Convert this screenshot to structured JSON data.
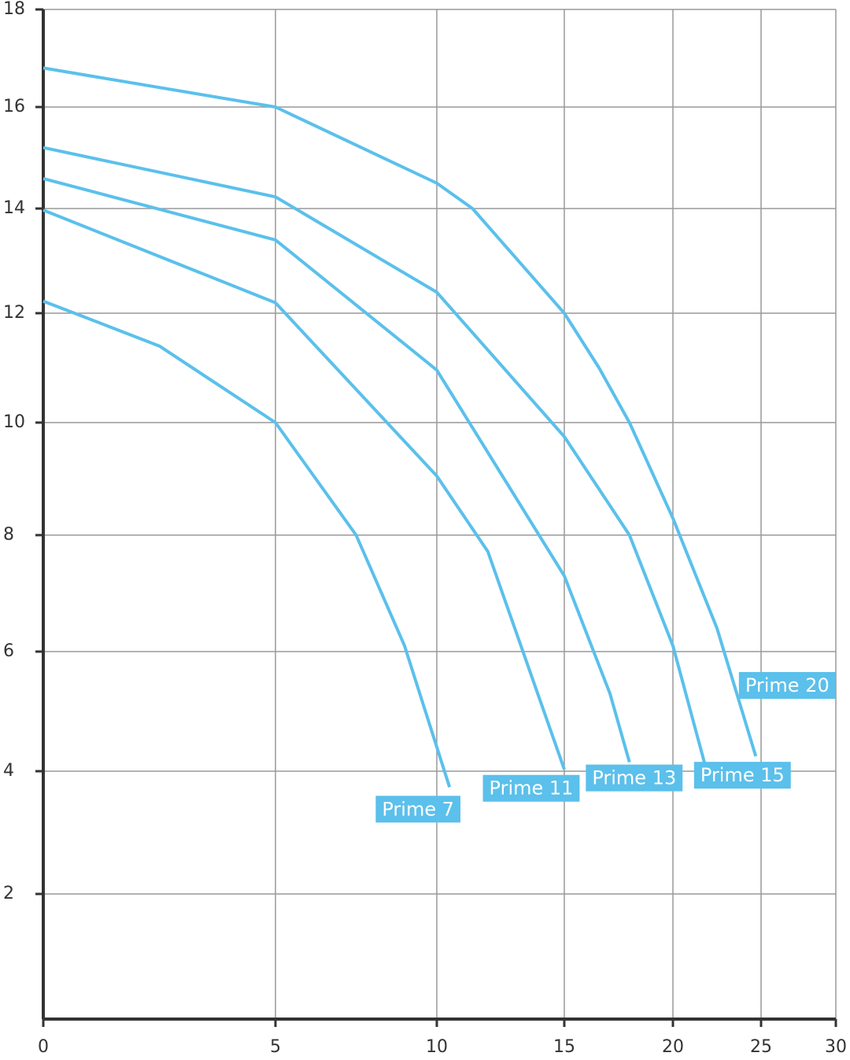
{
  "chart_data": {
    "type": "line",
    "series": [
      {
        "name": "Prime 7",
        "color": "#5bc0eb",
        "x": [
          0,
          2.5,
          5,
          7.5,
          9,
          10.5
        ],
        "values": [
          12.23,
          11.4,
          10,
          8,
          6.1,
          3.74
        ]
      },
      {
        "name": "Prime 11",
        "color": "#5bc0eb",
        "x": [
          0,
          5,
          10,
          12,
          15
        ],
        "values": [
          13.97,
          12.2,
          9.05,
          7.72,
          4.03
        ]
      },
      {
        "name": "Prime 13",
        "color": "#5bc0eb",
        "x": [
          0,
          5,
          10,
          15,
          17.1,
          18
        ],
        "values": [
          14.59,
          13.4,
          10.96,
          7.3,
          5.3,
          4.15
        ]
      },
      {
        "name": "Prime 15",
        "color": "#5bc0eb",
        "x": [
          0,
          5,
          10,
          15,
          18,
          20,
          21.8
        ],
        "values": [
          15.2,
          14.23,
          12.4,
          9.75,
          8,
          6.1,
          4.13
        ]
      },
      {
        "name": "Prime 20",
        "color": "#5bc0eb",
        "x": [
          0,
          5,
          10,
          11.4,
          15,
          16.6,
          18,
          20,
          22.5,
          24.7
        ],
        "values": [
          16.8,
          16,
          14.5,
          14,
          12,
          11,
          10,
          8.3,
          6.4,
          4.25
        ]
      }
    ],
    "xlim": [
      0,
      30
    ],
    "xticks": [
      0,
      5,
      10,
      15,
      20,
      25,
      30
    ],
    "ylim": [
      0,
      18
    ],
    "yticks": [
      2,
      4,
      6,
      8,
      10,
      12,
      14,
      16,
      18
    ],
    "grid": true
  }
}
